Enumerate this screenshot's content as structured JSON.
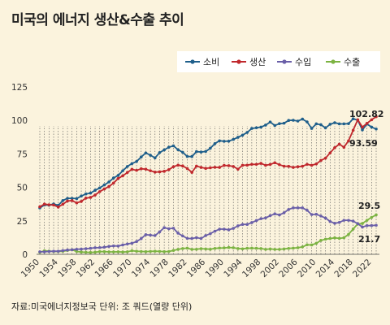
{
  "title": "미국의 에너지 생산&수출 추이",
  "source": "자료:미국에너지정보국 단위: 조 쿼드(열량 단위)",
  "chart_data": {
    "type": "line",
    "x": [
      1950,
      1951,
      1952,
      1953,
      1954,
      1955,
      1956,
      1957,
      1958,
      1959,
      1960,
      1961,
      1962,
      1963,
      1964,
      1965,
      1966,
      1967,
      1968,
      1969,
      1970,
      1971,
      1972,
      1973,
      1974,
      1975,
      1976,
      1977,
      1978,
      1979,
      1980,
      1981,
      1982,
      1983,
      1984,
      1985,
      1986,
      1987,
      1988,
      1989,
      1990,
      1991,
      1992,
      1993,
      1994,
      1995,
      1996,
      1997,
      1998,
      1999,
      2000,
      2001,
      2002,
      2003,
      2004,
      2005,
      2006,
      2007,
      2008,
      2009,
      2010,
      2011,
      2012,
      2013,
      2014,
      2015,
      2016,
      2017,
      2018,
      2019,
      2020,
      2021,
      2022,
      2023
    ],
    "x_ticks": [
      "1950",
      "1954",
      "1958",
      "1962",
      "1966",
      "1970",
      "1974",
      "1978",
      "1982",
      "1986",
      "1990",
      "1994",
      "1998",
      "2002",
      "2006",
      "2010",
      "2014",
      "2018",
      "2022"
    ],
    "ylim": [
      0,
      125
    ],
    "y_ticks": [
      "0",
      "25",
      "50",
      "75",
      "100",
      "125"
    ],
    "legend_position": "top-right",
    "grid": "vertical-dotted",
    "series": [
      {
        "name": "소비",
        "color": "#1f5f8b",
        "values": [
          34.6,
          36.9,
          36.7,
          37.6,
          36.6,
          40.2,
          41.8,
          41.8,
          41.6,
          43.5,
          45.1,
          45.7,
          47.8,
          49.6,
          51.8,
          54.0,
          57.0,
          58.9,
          62.4,
          65.6,
          67.8,
          69.3,
          72.7,
          75.7,
          74.0,
          72.0,
          76.0,
          78.0,
          80.0,
          81.0,
          78.1,
          76.2,
          73.1,
          73.0,
          76.7,
          76.4,
          76.8,
          79.2,
          82.7,
          84.8,
          84.4,
          84.5,
          85.8,
          87.4,
          89.0,
          91.0,
          94.0,
          94.5,
          95.0,
          96.5,
          98.8,
          96.2,
          97.6,
          97.9,
          100.0,
          100.1,
          99.5,
          101.0,
          98.9,
          94.0,
          97.4,
          96.8,
          94.4,
          97.1,
          98.3,
          97.4,
          97.4,
          97.6,
          101.2,
          100.2,
          92.9,
          97.3,
          95.0,
          93.59
        ]
      },
      {
        "name": "생산",
        "color": "#c0282d",
        "values": [
          35.5,
          37.5,
          37.0,
          36.8,
          35.3,
          37.4,
          39.8,
          40.1,
          38.4,
          39.5,
          42.0,
          42.5,
          44.3,
          46.8,
          48.8,
          50.6,
          53.2,
          56.6,
          58.6,
          61.1,
          63.5,
          62.7,
          63.9,
          63.6,
          62.4,
          61.4,
          61.6,
          62.0,
          63.2,
          65.4,
          66.6,
          66.0,
          64.1,
          61.2,
          65.9,
          64.9,
          64.2,
          64.6,
          65.0,
          64.9,
          66.4,
          66.2,
          65.6,
          63.6,
          66.5,
          66.6,
          67.2,
          67.2,
          67.9,
          66.5,
          67.1,
          68.4,
          66.9,
          65.8,
          65.7,
          64.9,
          65.4,
          65.8,
          67.2,
          66.5,
          67.5,
          70.1,
          71.8,
          75.7,
          79.6,
          82.3,
          79.9,
          84.8,
          92.6,
          100.5,
          95.0,
          97.8,
          100.5,
          102.82
        ]
      },
      {
        "name": "수입",
        "color": "#6a5fa8",
        "values": [
          1.9,
          1.9,
          2.1,
          2.3,
          2.3,
          2.8,
          3.2,
          3.4,
          3.8,
          3.9,
          4.2,
          4.5,
          4.9,
          5.0,
          5.3,
          5.9,
          6.3,
          6.2,
          7.0,
          7.7,
          8.3,
          9.5,
          11.7,
          14.7,
          14.3,
          14.0,
          16.8,
          19.9,
          19.1,
          19.5,
          15.8,
          13.7,
          11.9,
          11.8,
          12.5,
          11.8,
          14.0,
          15.4,
          17.3,
          18.8,
          18.8,
          18.3,
          19.4,
          21.3,
          22.3,
          22.3,
          23.7,
          25.2,
          26.6,
          27.2,
          28.9,
          30.2,
          29.4,
          31.0,
          33.5,
          34.7,
          34.7,
          34.7,
          32.9,
          29.7,
          29.9,
          28.6,
          27.1,
          24.5,
          23.2,
          23.8,
          25.4,
          25.4,
          24.8,
          22.9,
          20.3,
          21.4,
          21.5,
          21.7
        ]
      },
      {
        "name": "수출",
        "color": "#7cb342",
        "values": [
          1.5,
          2.6,
          2.4,
          2.1,
          2.1,
          2.3,
          2.9,
          3.4,
          2.1,
          1.7,
          1.5,
          1.4,
          1.6,
          2.0,
          2.0,
          1.8,
          1.8,
          1.9,
          1.7,
          1.9,
          2.7,
          2.3,
          2.1,
          2.0,
          2.2,
          2.3,
          2.2,
          2.0,
          2.1,
          2.9,
          3.7,
          4.3,
          4.6,
          3.7,
          3.8,
          4.2,
          4.0,
          3.8,
          4.4,
          4.7,
          4.8,
          5.1,
          4.9,
          4.3,
          4.1,
          4.5,
          4.6,
          4.5,
          4.3,
          3.7,
          4.0,
          3.7,
          3.7,
          4.0,
          4.4,
          4.6,
          4.9,
          5.5,
          7.1,
          7.0,
          8.2,
          10.4,
          11.3,
          11.8,
          12.3,
          11.9,
          12.4,
          14.9,
          18.9,
          22.7,
          23.0,
          25.4,
          27.6,
          29.5
        ]
      }
    ],
    "end_labels": {
      "소비": "93.59",
      "생산": "102.82",
      "수입": "21.7",
      "수출": "29.5"
    }
  }
}
